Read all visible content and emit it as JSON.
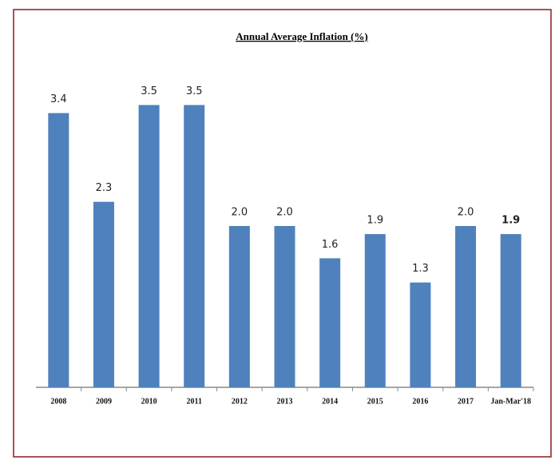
{
  "chart_data": {
    "type": "bar",
    "title": "Annual Average Inflation (%)",
    "categories": [
      "2008",
      "2009",
      "2010",
      "2011",
      "2012",
      "2013",
      "2014",
      "2015",
      "2016",
      "2017",
      "Jan-Mar'18"
    ],
    "values": [
      3.4,
      2.3,
      3.5,
      3.5,
      2.0,
      2.0,
      1.6,
      1.9,
      1.3,
      2.0,
      1.9
    ],
    "value_labels": [
      "3.4",
      "2.3",
      "3.5",
      "3.5",
      "2.0",
      "2.0",
      "1.6",
      "1.9",
      "1.3",
      "2.0",
      "1.9"
    ],
    "color": "#4f81bd"
  }
}
